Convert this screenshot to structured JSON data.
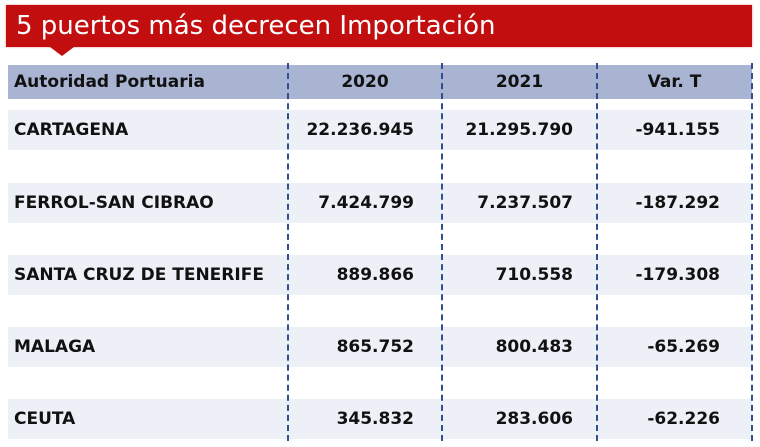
{
  "title": "5 puertos más decrecen Importación",
  "colors": {
    "title_bg": "#c20e0e",
    "header_bg": "#a9b3d2",
    "row_bg": "#eef0f7",
    "divider": "#2f4f8f"
  },
  "headers": [
    "Autoridad Portuaria",
    "2020",
    "2021",
    "Var. T"
  ],
  "rows": [
    [
      "CARTAGENA",
      "22.236.945",
      "21.295.790",
      "-941.155"
    ],
    [
      "FERROL-SAN CIBRAO",
      "7.424.799",
      "7.237.507",
      "-187.292"
    ],
    [
      "SANTA CRUZ DE TENERIFE",
      "889.866",
      "710.558",
      "-179.308"
    ],
    [
      "MALAGA",
      "865.752",
      "800.483",
      "-65.269"
    ],
    [
      "CEUTA",
      "345.832",
      "283.606",
      "-62.226"
    ]
  ]
}
